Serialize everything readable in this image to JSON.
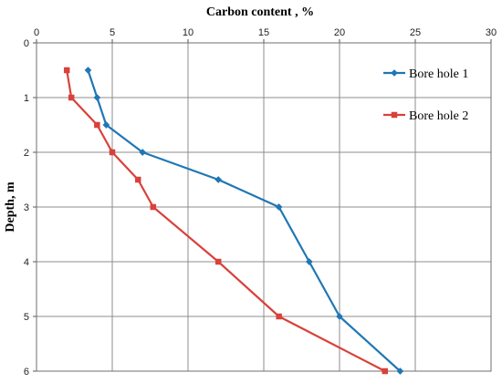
{
  "chart_data": {
    "type": "line",
    "orientation": "depth-profile",
    "xlabel": "Carbon content , %",
    "ylabel": "Depth, m",
    "xlim": [
      0,
      30
    ],
    "ylim": [
      0,
      6
    ],
    "x_axis_position": "top",
    "y_axis_inverted": true,
    "x_ticks": [
      "0",
      "5",
      "10",
      "15",
      "20",
      "25",
      "30"
    ],
    "y_ticks": [
      "0",
      "1",
      "2",
      "3",
      "4",
      "5",
      "6"
    ],
    "grid": true,
    "legend_position": "right",
    "series": [
      {
        "name": "Bore hole 1",
        "color": "#1f77b4",
        "marker": "diamond",
        "points": [
          {
            "x": 3.4,
            "y": 0.5
          },
          {
            "x": 4.0,
            "y": 1.0
          },
          {
            "x": 4.6,
            "y": 1.5
          },
          {
            "x": 7.0,
            "y": 2.0
          },
          {
            "x": 12.0,
            "y": 2.5
          },
          {
            "x": 16.0,
            "y": 3.0
          },
          {
            "x": 18.0,
            "y": 4.0
          },
          {
            "x": 20.0,
            "y": 5.0
          },
          {
            "x": 24.0,
            "y": 6.0
          }
        ]
      },
      {
        "name": "Bore hole 2",
        "color": "#d9413a",
        "marker": "square",
        "points": [
          {
            "x": 2.0,
            "y": 0.5
          },
          {
            "x": 2.3,
            "y": 1.0
          },
          {
            "x": 4.0,
            "y": 1.5
          },
          {
            "x": 5.0,
            "y": 2.0
          },
          {
            "x": 6.7,
            "y": 2.5
          },
          {
            "x": 7.7,
            "y": 3.0
          },
          {
            "x": 12.0,
            "y": 4.0
          },
          {
            "x": 16.0,
            "y": 5.0
          },
          {
            "x": 23.0,
            "y": 6.0
          }
        ]
      }
    ]
  }
}
